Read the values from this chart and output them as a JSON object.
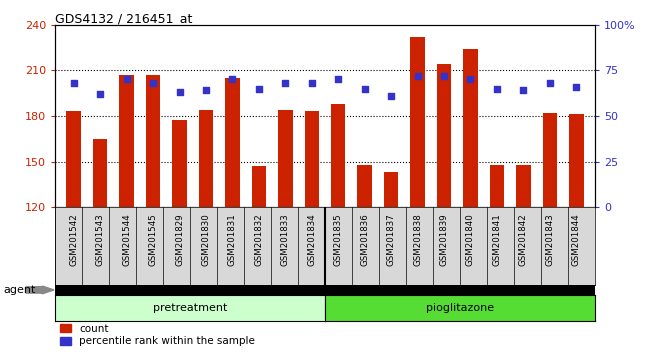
{
  "title": "GDS4132 / 216451_at",
  "samples": [
    "GSM201542",
    "GSM201543",
    "GSM201544",
    "GSM201545",
    "GSM201829",
    "GSM201830",
    "GSM201831",
    "GSM201832",
    "GSM201833",
    "GSM201834",
    "GSM201835",
    "GSM201836",
    "GSM201837",
    "GSM201838",
    "GSM201839",
    "GSM201840",
    "GSM201841",
    "GSM201842",
    "GSM201843",
    "GSM201844"
  ],
  "counts": [
    183,
    165,
    207,
    207,
    177,
    184,
    205,
    147,
    184,
    183,
    188,
    148,
    143,
    232,
    214,
    224,
    148,
    148,
    182,
    181
  ],
  "percentiles": [
    68,
    62,
    70,
    68,
    63,
    64,
    70,
    65,
    68,
    68,
    70,
    65,
    61,
    72,
    72,
    70,
    65,
    64,
    68,
    66
  ],
  "pretreatment_count": 10,
  "pioglitazone_count": 10,
  "ylim_left": [
    120,
    240
  ],
  "ylim_right": [
    0,
    100
  ],
  "yticks_left": [
    120,
    150,
    180,
    210,
    240
  ],
  "yticks_right": [
    0,
    25,
    50,
    75,
    100
  ],
  "bar_color": "#cc2200",
  "dot_color": "#3333cc",
  "pretreatment_color": "#ccffcc",
  "pioglitazone_color": "#55dd33",
  "background_color": "#d8d8d8",
  "plot_bg_color": "#ffffff",
  "grid_color": "#000000",
  "right_axis_label_color": "#3333cc",
  "left_axis_label_color": "#cc2200",
  "legend_count_label": "count",
  "legend_percentile_label": "percentile rank within the sample",
  "bar_width": 0.55
}
